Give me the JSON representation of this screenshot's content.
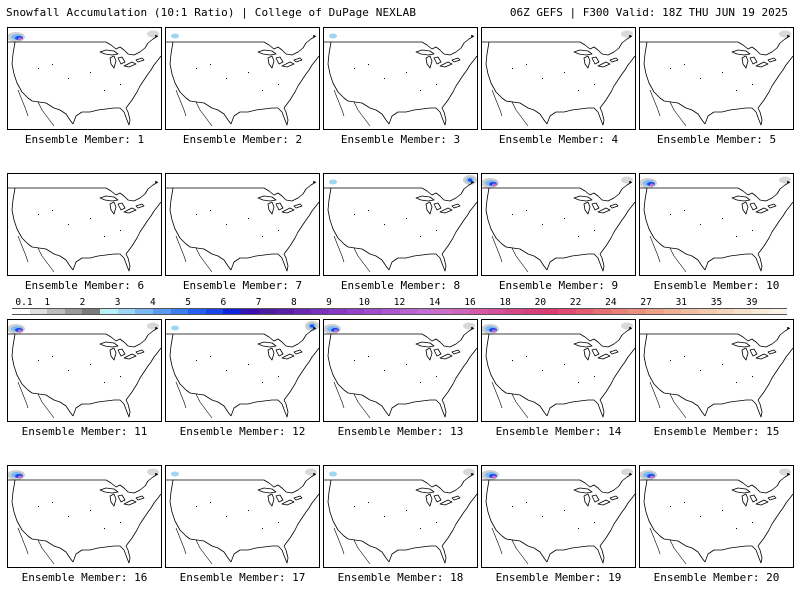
{
  "header": {
    "left": "Snowfall Accumulation (10:1 Ratio) | College of DuPage NEXLAB",
    "right": "06Z GEFS | F300 Valid: 18Z THU JUN 19 2025"
  },
  "panels": [
    {
      "label": "Ensemble Member: 1",
      "snow": [
        "nw-heavy",
        "ne-light"
      ]
    },
    {
      "label": "Ensemble Member: 2",
      "snow": [
        "nw-light"
      ]
    },
    {
      "label": "Ensemble Member: 3",
      "snow": [
        "nw-light"
      ]
    },
    {
      "label": "Ensemble Member: 4",
      "snow": [
        "ne-light"
      ]
    },
    {
      "label": "Ensemble Member: 5",
      "snow": [
        "ne-light"
      ]
    },
    {
      "label": "Ensemble Member: 6",
      "snow": []
    },
    {
      "label": "Ensemble Member: 7",
      "snow": []
    },
    {
      "label": "Ensemble Member: 8",
      "snow": [
        "nw-light",
        "ne-heavy"
      ]
    },
    {
      "label": "Ensemble Member: 9",
      "snow": [
        "nw-heavy",
        "ne-light"
      ]
    },
    {
      "label": "Ensemble Member: 10",
      "snow": [
        "nw-heavy",
        "ne-light"
      ]
    },
    {
      "label": "Ensemble Member: 11",
      "snow": [
        "nw-heavy",
        "ne-light"
      ]
    },
    {
      "label": "Ensemble Member: 12",
      "snow": [
        "nw-light",
        "ne-heavy"
      ]
    },
    {
      "label": "Ensemble Member: 13",
      "snow": [
        "nw-heavy",
        "ne-light"
      ]
    },
    {
      "label": "Ensemble Member: 14",
      "snow": [
        "nw-heavy",
        "ne-light"
      ]
    },
    {
      "label": "Ensemble Member: 15",
      "snow": []
    },
    {
      "label": "Ensemble Member: 16",
      "snow": [
        "nw-heavy",
        "ne-light"
      ]
    },
    {
      "label": "Ensemble Member: 17",
      "snow": [
        "nw-light",
        "ne-light"
      ]
    },
    {
      "label": "Ensemble Member: 18",
      "snow": [
        "nw-light",
        "ne-light"
      ]
    },
    {
      "label": "Ensemble Member: 19",
      "snow": [
        "nw-heavy",
        "ne-light"
      ]
    },
    {
      "label": "Ensemble Member: 20",
      "snow": [
        "nw-heavy",
        "ne-light"
      ]
    }
  ],
  "color_scale": [
    {
      "label": "0.1",
      "color": "#ffffff"
    },
    {
      "label": "",
      "color": "#e0e0e0"
    },
    {
      "label": "1",
      "color": "#bdbdbd"
    },
    {
      "label": "",
      "color": "#9a9a9a"
    },
    {
      "label": "2",
      "color": "#7b7b7b"
    },
    {
      "label": "",
      "color": "#b9f0f5"
    },
    {
      "label": "3",
      "color": "#9fd6f4"
    },
    {
      "label": "",
      "color": "#7cb8f2"
    },
    {
      "label": "4",
      "color": "#5a9af0"
    },
    {
      "label": "",
      "color": "#3c7ef0"
    },
    {
      "label": "5",
      "color": "#2560f0"
    },
    {
      "label": "",
      "color": "#1846e8"
    },
    {
      "label": "6",
      "color": "#0b24dc"
    },
    {
      "label": "",
      "color": "#3a10b0"
    },
    {
      "label": "7",
      "color": "#4a1aa0"
    },
    {
      "label": "",
      "color": "#5a1fa8"
    },
    {
      "label": "8",
      "color": "#6a26b4"
    },
    {
      "label": "",
      "color": "#7a30be"
    },
    {
      "label": "9",
      "color": "#8838c4"
    },
    {
      "label": "",
      "color": "#9442c8"
    },
    {
      "label": "10",
      "color": "#a04ccc"
    },
    {
      "label": "",
      "color": "#ac56d0"
    },
    {
      "label": "12",
      "color": "#b862d2"
    },
    {
      "label": "",
      "color": "#c46ed4"
    },
    {
      "label": "14",
      "color": "#cc6ec8"
    },
    {
      "label": "",
      "color": "#d064b8"
    },
    {
      "label": "16",
      "color": "#d45aa8"
    },
    {
      "label": "",
      "color": "#d45098"
    },
    {
      "label": "18",
      "color": "#d44888"
    },
    {
      "label": "",
      "color": "#d8407c"
    },
    {
      "label": "20",
      "color": "#dc3a72"
    },
    {
      "label": "",
      "color": "#e04a70"
    },
    {
      "label": "22",
      "color": "#e45c72"
    },
    {
      "label": "",
      "color": "#e66e74"
    },
    {
      "label": "24",
      "color": "#e88078"
    },
    {
      "label": "",
      "color": "#ea907e"
    },
    {
      "label": "27",
      "color": "#eca088"
    },
    {
      "label": "",
      "color": "#eeb094"
    },
    {
      "label": "31",
      "color": "#f0bea0"
    },
    {
      "label": "",
      "color": "#f2caae"
    },
    {
      "label": "35",
      "color": "#f4d6bc"
    },
    {
      "label": "",
      "color": "#f6e0ca"
    },
    {
      "label": "39",
      "color": "#f8ead8"
    },
    {
      "label": "",
      "color": "#fbf2e8"
    }
  ]
}
